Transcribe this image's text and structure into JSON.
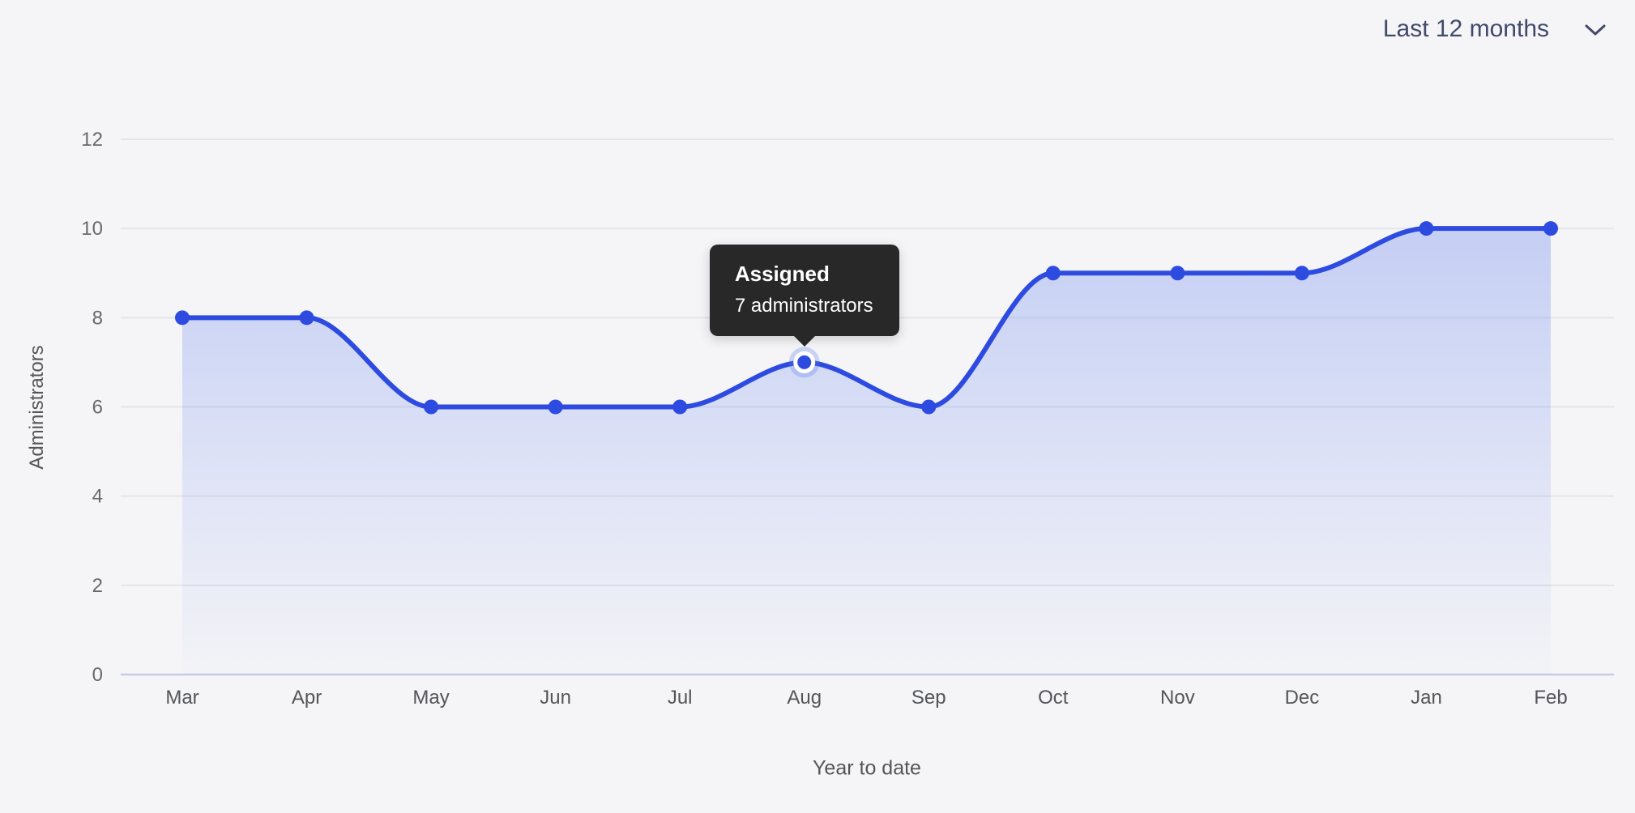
{
  "header": {
    "range_label": "Last 12 months"
  },
  "chart_data": {
    "type": "area",
    "x": [
      "Mar",
      "Apr",
      "May",
      "Jun",
      "Jul",
      "Aug",
      "Sep",
      "Oct",
      "Nov",
      "Dec",
      "Jan",
      "Feb"
    ],
    "series": [
      {
        "name": "Assigned",
        "values": [
          8,
          8,
          6,
          6,
          6,
          7,
          6,
          9,
          9,
          9,
          10,
          10
        ]
      }
    ],
    "xlabel": "Year to date",
    "ylabel": "Administrators",
    "yticks": [
      0,
      2,
      4,
      6,
      8,
      10,
      12
    ],
    "ylim": [
      0,
      12
    ],
    "grid": "horizontal",
    "legend": "none",
    "curve": "smooth-monotone"
  },
  "tooltip": {
    "title": "Assigned",
    "value": "7 administrators",
    "point_index": 5,
    "month": "Aug",
    "point_value": 7
  },
  "colors": {
    "background": "#f5f5f7",
    "accent": "#2d4be0",
    "area_gradient_top": "rgba(86,118,238,0.30)",
    "area_gradient_bottom": "rgba(86,118,238,0.01)",
    "gridline": "#e4e5ea",
    "axis_line": "#c5cce8",
    "axis_text": "#54555b",
    "tick_text": "#69696d",
    "header_text": "#414a6b",
    "tooltip_bg": "#282828",
    "tooltip_text": "#ffffff",
    "halo": "rgba(86,118,238,0.28)",
    "point_ring": "#ffffff"
  }
}
